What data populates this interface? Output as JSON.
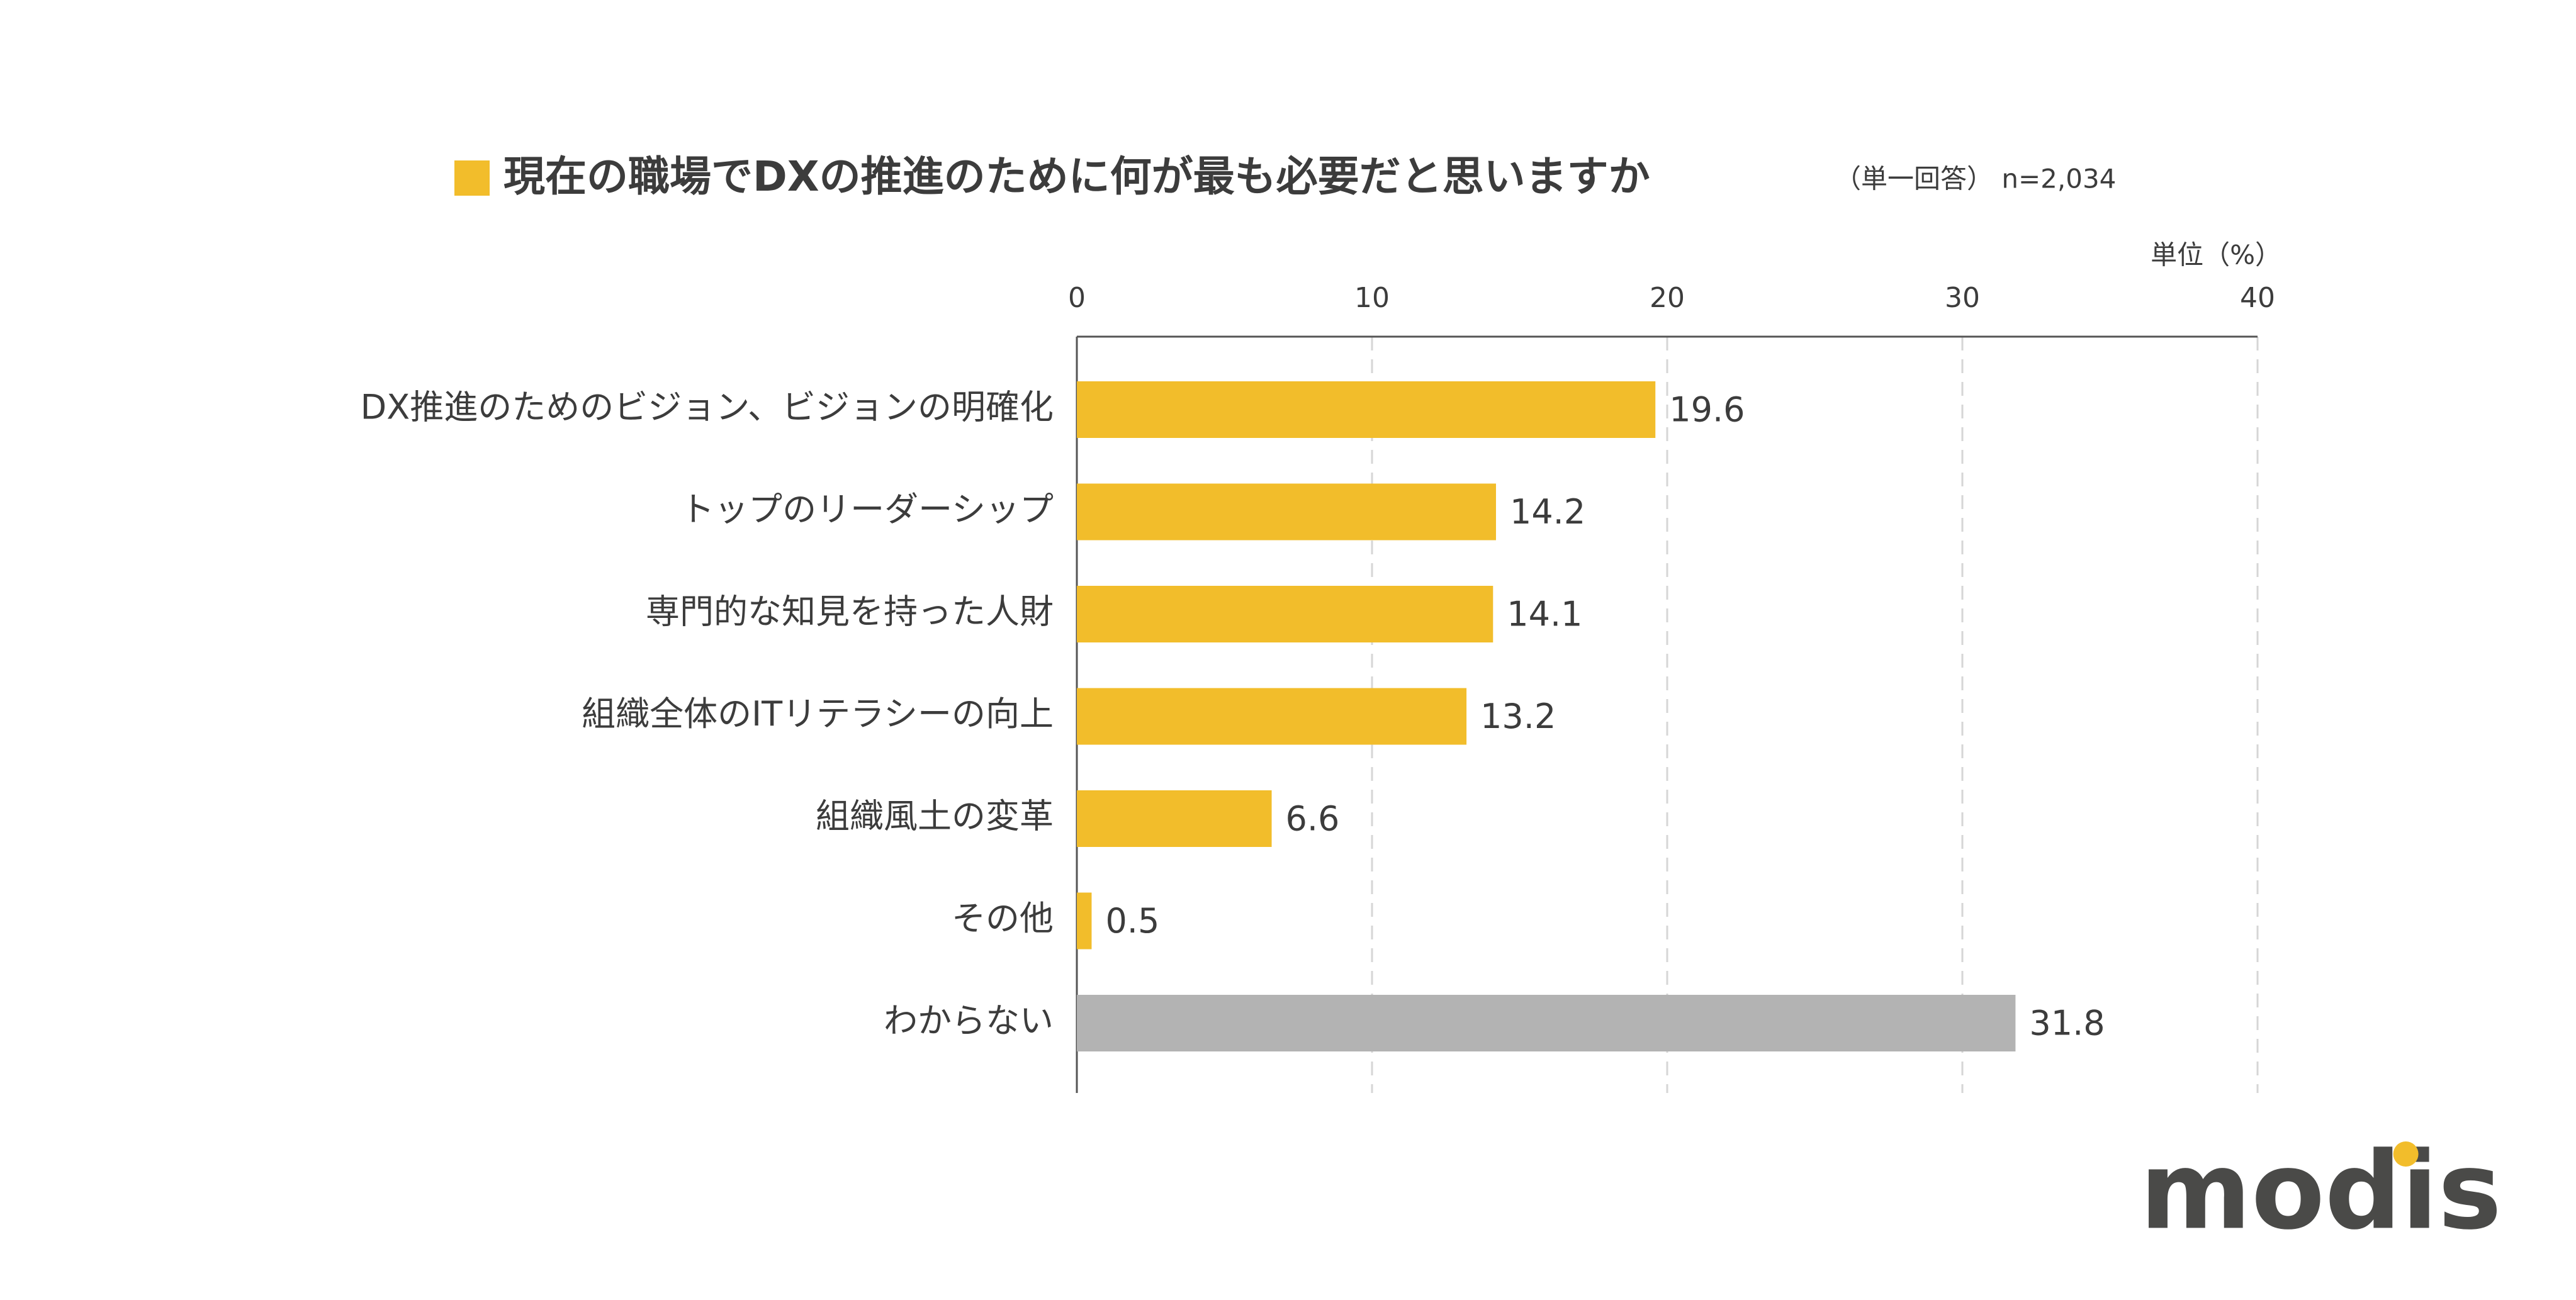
{
  "chart_data": {
    "type": "bar",
    "orientation": "horizontal",
    "title": "現在の職場でDXの推進のために何が最も必要だと思いますか",
    "subtitle": "（単一回答） n=2,034",
    "unit_label": "単位（%）",
    "categories": [
      "DX推進のためのビジョン、ビジョンの明確化",
      "トップのリーダーシップ",
      "専門的な知見を持った人財",
      "組織全体のITリテラシーの向上",
      "組織風土の変革",
      "その他",
      "わからない"
    ],
    "values": [
      19.6,
      14.2,
      14.1,
      13.2,
      6.6,
      0.5,
      31.8
    ],
    "colors": [
      "#f2bd2b",
      "#f2bd2b",
      "#f2bd2b",
      "#f2bd2b",
      "#f2bd2b",
      "#f2bd2b",
      "#b3b3b3"
    ],
    "title_marker_color": "#f2bd2b",
    "xlim": [
      0,
      40
    ],
    "xticks": [
      0,
      10,
      20,
      30,
      40
    ],
    "grid": true
  },
  "logo": "modis"
}
